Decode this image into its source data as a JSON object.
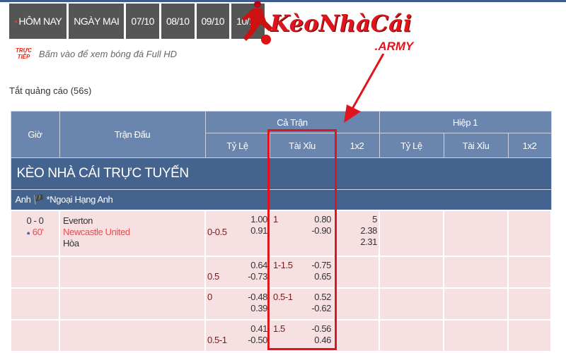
{
  "tabs": [
    {
      "label": "HÔM NAY",
      "active": true
    },
    {
      "label": "NGÀY MAI"
    },
    {
      "label": "07/10"
    },
    {
      "label": "08/10"
    },
    {
      "label": "09/10"
    },
    {
      "label": "10/10"
    }
  ],
  "live": {
    "badge_line1": "TRỰC",
    "badge_line2": "TIẾP",
    "text": "Bấm vào để xem bóng đá Full HD"
  },
  "ads_text": "Tắt quảng cáo (56s)",
  "logo": {
    "text": "KèoNhàCái",
    "sub": ".ARMY"
  },
  "table": {
    "headers": {
      "time": "Giờ",
      "match": "Trận Đấu",
      "full": "Cả Trận",
      "half": "Hiệp 1",
      "sub": [
        "Tỷ Lệ",
        "Tài Xỉu",
        "1x2",
        "Tỷ Lệ",
        "Tài Xỉu",
        "1x2"
      ]
    },
    "section_title": "KÈO NHÀ CÁI TRỰC TUYẾN",
    "league": "Anh 🏴 *Ngoại Hạng Anh",
    "match": {
      "score": "0 - 0",
      "minute": "60'",
      "home": "Everton",
      "away": "Newcastle United",
      "draw": "Hòa"
    },
    "rows": [
      {
        "hdp": "0-0.5",
        "hdp_top": false,
        "hdp_o1": "1.00",
        "hdp_o2": "0.91",
        "ou": "1",
        "ou_o1": "0.80",
        "ou_o2": "-0.90",
        "x12": [
          "5",
          "2.38",
          "2.31"
        ]
      },
      {
        "hdp": "0.5",
        "hdp_top": false,
        "hdp_o1": "0.64",
        "hdp_o2": "-0.73",
        "ou": "1-1.5",
        "ou_o1": "-0.75",
        "ou_o2": "0.65"
      },
      {
        "hdp": "0",
        "hdp_top": true,
        "hdp_o1": "-0.48",
        "hdp_o2": "0.39",
        "ou": "0.5-1",
        "ou_o1": "0.52",
        "ou_o2": "-0.62"
      },
      {
        "hdp": "0.5-1",
        "hdp_top": false,
        "hdp_o1": "0.41",
        "hdp_o2": "-0.50",
        "ou": "1.5",
        "ou_o1": "-0.56",
        "ou_o2": "0.46"
      }
    ]
  },
  "colors": {
    "header": "#6a86ae",
    "band": "#44648f",
    "row": "#f7e0e1",
    "highlight": "#e0141c"
  }
}
